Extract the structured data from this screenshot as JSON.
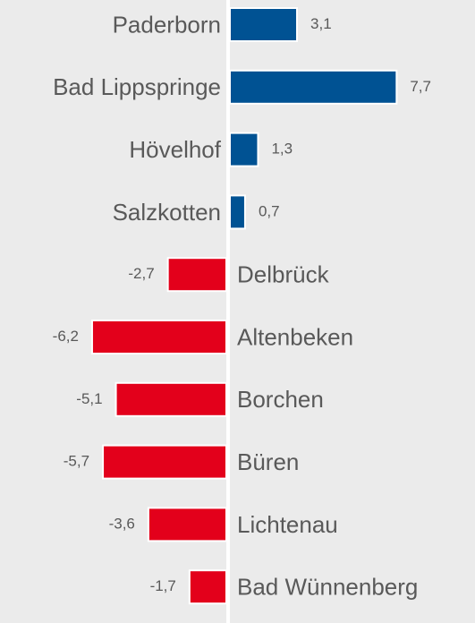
{
  "chart_data": {
    "type": "bar",
    "orientation": "horizontal",
    "categories": [
      "Paderborn",
      "Bad Lippspringe",
      "Hövelhof",
      "Salzkotten",
      "Delbrück",
      "Altenbeken",
      "Borchen",
      "Büren",
      "Lichtenau",
      "Bad Wünnenberg"
    ],
    "values": [
      3.1,
      7.7,
      1.3,
      0.7,
      -2.7,
      -6.2,
      -5.1,
      -5.7,
      -3.6,
      -1.7
    ],
    "value_labels": [
      "3,1",
      "7,7",
      "1,3",
      "0,7",
      "-2,7",
      "-6,2",
      "-5,1",
      "-5,7",
      "-3,6",
      "-1,7"
    ],
    "positive_color": "#005293",
    "negative_color": "#e3001b"
  }
}
